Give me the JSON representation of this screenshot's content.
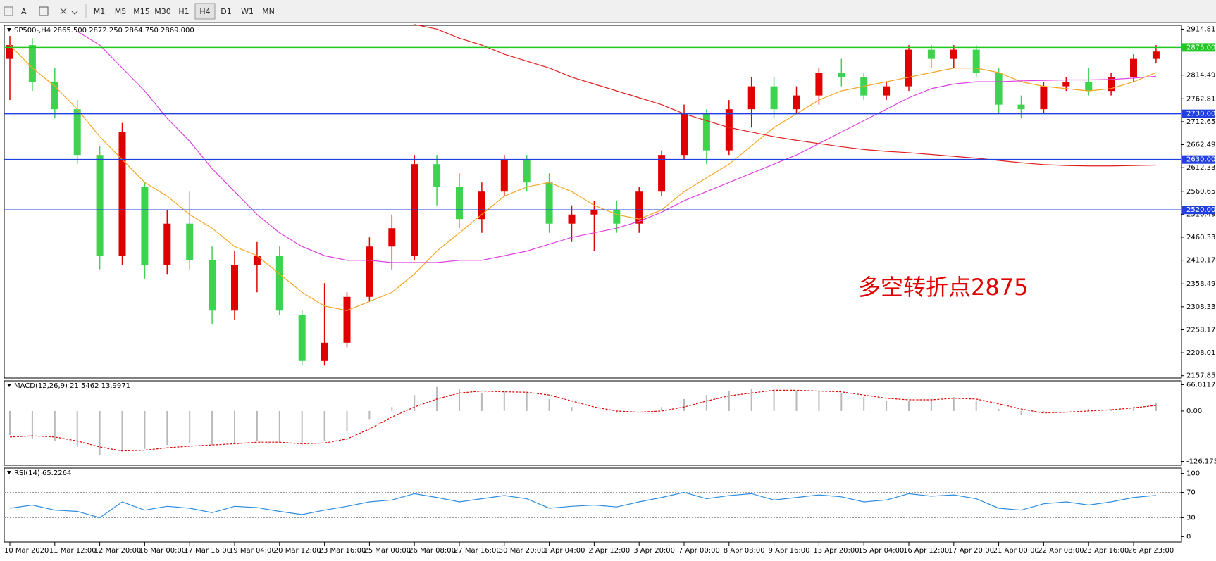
{
  "toolbar": {
    "buttons": [
      "A"
    ],
    "timeframes": [
      "M1",
      "M5",
      "M15",
      "M30",
      "H1",
      "H4",
      "D1",
      "W1",
      "MN"
    ],
    "active": 5
  },
  "chart_data": [
    {
      "type": "candlestick",
      "title": "SP500-,H4  2865.500 2872.250 2864.750 2869.000",
      "categories": [
        "10 Mar 2020",
        null,
        "11 Mar 12:00",
        null,
        "12 Mar 20:00",
        null,
        "16 Mar 00:00",
        null,
        "17 Mar 16:00",
        null,
        "19 Mar 04:00",
        null,
        "20 Mar 12:00",
        null,
        "23 Mar 16:00",
        null,
        "25 Mar 00:00",
        null,
        "26 Mar 08:00",
        null,
        "27 Mar 16:00",
        null,
        "30 Mar 20:00",
        null,
        "1 Apr 04:00",
        null,
        "2 Apr 12:00",
        null,
        "3 Apr 20:00",
        null,
        "7 Apr 00:00",
        null,
        "8 Apr 08:00",
        null,
        "9 Apr 16:00",
        null,
        "13 Apr 20:00",
        null,
        "15 Apr 04:00",
        null,
        "16 Apr 12:00",
        null,
        "17 Apr 20:00",
        null,
        "21 Apr 00:00",
        null,
        "22 Apr 08:00",
        null,
        "23 Apr 16:00",
        null,
        "26 Apr 23:00",
        null
      ],
      "open": [
        2850,
        2880,
        2800,
        2740,
        2640,
        2420,
        2570,
        2400,
        2490,
        2410,
        2300,
        2400,
        2420,
        2290,
        2190,
        2230,
        2330,
        2440,
        2420,
        2620,
        2570,
        2500,
        2560,
        2630,
        2580,
        2490,
        2510,
        2520,
        2490,
        2560,
        2640,
        2730,
        2650,
        2740,
        2790,
        2740,
        2770,
        2820,
        2810,
        2770,
        2790,
        2870,
        2850,
        2870,
        2820,
        2750,
        2740,
        2790,
        2800,
        2780,
        2810,
        2850
      ],
      "high": [
        2900,
        2895,
        2830,
        2760,
        2660,
        2710,
        2580,
        2520,
        2560,
        2440,
        2430,
        2450,
        2440,
        2300,
        2360,
        2340,
        2460,
        2510,
        2640,
        2640,
        2600,
        2580,
        2640,
        2640,
        2600,
        2530,
        2540,
        2540,
        2570,
        2650,
        2750,
        2740,
        2760,
        2810,
        2810,
        2790,
        2830,
        2850,
        2820,
        2800,
        2880,
        2880,
        2880,
        2880,
        2830,
        2770,
        2800,
        2810,
        2830,
        2820,
        2860,
        2880
      ],
      "low": [
        2760,
        2780,
        2720,
        2620,
        2390,
        2400,
        2370,
        2380,
        2390,
        2270,
        2280,
        2340,
        2290,
        2180,
        2180,
        2220,
        2320,
        2390,
        2410,
        2530,
        2480,
        2470,
        2550,
        2560,
        2470,
        2450,
        2430,
        2470,
        2470,
        2550,
        2630,
        2620,
        2640,
        2700,
        2720,
        2730,
        2750,
        2790,
        2760,
        2760,
        2780,
        2830,
        2830,
        2810,
        2730,
        2720,
        2730,
        2780,
        2770,
        2770,
        2800,
        2840
      ],
      "close": [
        2880,
        2800,
        2740,
        2640,
        2420,
        2690,
        2400,
        2490,
        2410,
        2300,
        2400,
        2420,
        2300,
        2190,
        2230,
        2330,
        2440,
        2480,
        2620,
        2570,
        2500,
        2560,
        2630,
        2580,
        2490,
        2510,
        2520,
        2490,
        2560,
        2640,
        2730,
        2650,
        2740,
        2790,
        2740,
        2770,
        2820,
        2810,
        2770,
        2790,
        2870,
        2850,
        2870,
        2820,
        2750,
        2740,
        2790,
        2800,
        2780,
        2810,
        2850,
        2866
      ],
      "up_color": "#e00000",
      "down_color": "#3fd24f",
      "series": [
        {
          "color": "#f5a623",
          "values": [
            2880,
            2830,
            2790,
            2740,
            2680,
            2630,
            2580,
            2550,
            2510,
            2480,
            2440,
            2420,
            2380,
            2340,
            2310,
            2300,
            2320,
            2340,
            2380,
            2430,
            2470,
            2510,
            2550,
            2570,
            2580,
            2560,
            2530,
            2510,
            2500,
            2520,
            2560,
            2590,
            2620,
            2660,
            2700,
            2730,
            2760,
            2780,
            2790,
            2800,
            2810,
            2820,
            2830,
            2830,
            2820,
            2800,
            2790,
            2785,
            2780,
            2785,
            2800,
            2820
          ]
        },
        {
          "color": "#e040e0",
          "values": [
            null,
            null,
            null,
            2910,
            2880,
            2830,
            2780,
            2720,
            2670,
            2610,
            2560,
            2510,
            2470,
            2440,
            2420,
            2410,
            2410,
            2405,
            2405,
            2405,
            2410,
            2410,
            2420,
            2430,
            2445,
            2460,
            2470,
            2480,
            2495,
            2515,
            2540,
            2560,
            2580,
            2600,
            2620,
            2640,
            2665,
            2690,
            2715,
            2740,
            2765,
            2785,
            2795,
            2800,
            2800,
            2802,
            2803,
            2804,
            2804,
            2805,
            2808,
            2812
          ]
        },
        {
          "color": "#e02020",
          "values": [
            null,
            null,
            null,
            null,
            null,
            null,
            null,
            null,
            null,
            null,
            null,
            null,
            null,
            null,
            null,
            null,
            null,
            null,
            2925,
            2915,
            2895,
            2880,
            2860,
            2845,
            2830,
            2810,
            2795,
            2780,
            2765,
            2750,
            2730,
            2715,
            2700,
            2690,
            2680,
            2672,
            2665,
            2658,
            2652,
            2648,
            2645,
            2641,
            2637,
            2633,
            2628,
            2623,
            2619,
            2617,
            2616,
            2616,
            2617,
            2618
          ]
        }
      ],
      "levels": [
        {
          "value": 2875,
          "label": "2875.000",
          "color": "#22c822"
        },
        {
          "value": 2730,
          "label": "2730.000",
          "color": "#2040e0"
        },
        {
          "value": 2630,
          "label": "2630.000",
          "color": "#2040e0"
        },
        {
          "value": 2520,
          "label": "2520.000",
          "color": "#2040e0"
        }
      ],
      "annotation": "多空转折点2875",
      "ylim": [
        2152.8,
        2923.2
      ],
      "yticks": [
        {
          "value": 2914.81,
          "label": "2914.810"
        },
        {
          "value": 2814.49,
          "label": "2814.490"
        },
        {
          "value": 2762.81,
          "label": "2762.810"
        },
        {
          "value": 2712.65,
          "label": "2712.650"
        },
        {
          "value": 2662.49,
          "label": "2662.490"
        },
        {
          "value": 2612.33,
          "label": "2612.330"
        },
        {
          "value": 2560.65,
          "label": "2560.650"
        },
        {
          "value": 2510.49,
          "label": "2510.490"
        },
        {
          "value": 2460.33,
          "label": "2460.330"
        },
        {
          "value": 2410.17,
          "label": "2410.170"
        },
        {
          "value": 2358.49,
          "label": "2358.490"
        },
        {
          "value": 2308.33,
          "label": "2308.330"
        },
        {
          "value": 2258.17,
          "label": "2258.170"
        },
        {
          "value": 2208.01,
          "label": "2208.010"
        },
        {
          "value": 2157.85,
          "label": "2157.850"
        }
      ]
    },
    {
      "type": "macd",
      "title": "MACD(12,26,9) 21.5462 13.9971",
      "histogram": {
        "color": "#b8b8b8",
        "values": [
          -60,
          -70,
          -75,
          -90,
          -110,
          -100,
          -95,
          -85,
          -80,
          -85,
          -80,
          -75,
          -80,
          -85,
          -75,
          -50,
          -20,
          10,
          40,
          60,
          55,
          45,
          50,
          45,
          30,
          10,
          0,
          -5,
          0,
          10,
          30,
          40,
          50,
          55,
          55,
          50,
          50,
          45,
          35,
          25,
          25,
          30,
          35,
          25,
          5,
          -10,
          -5,
          0,
          5,
          5,
          10,
          21.5462
        ]
      },
      "series": [
        {
          "color": "#e00000",
          "values": [
            -65,
            -62,
            -65,
            -75,
            -90,
            -100,
            -98,
            -92,
            -88,
            -85,
            -82,
            -78,
            -78,
            -82,
            -80,
            -70,
            -45,
            -15,
            10,
            30,
            45,
            50,
            48,
            47,
            40,
            25,
            10,
            0,
            -3,
            0,
            10,
            25,
            38,
            45,
            52,
            52,
            50,
            48,
            40,
            32,
            28,
            28,
            32,
            30,
            18,
            5,
            -5,
            -3,
            0,
            3,
            8,
            13.9971
          ]
        }
      ],
      "ylim": [
        -135.8,
        75.6
      ],
      "yticks": [
        66.0117,
        {
          "value": 0,
          "label": "0.00"
        },
        -126.173
      ]
    },
    {
      "type": "line",
      "title": "RSI(14) 65.2264",
      "series": [
        {
          "color": "#2d8ce0",
          "values": [
            45,
            50,
            42,
            40,
            30,
            55,
            42,
            48,
            45,
            38,
            48,
            46,
            40,
            35,
            42,
            48,
            55,
            58,
            68,
            62,
            55,
            60,
            65,
            60,
            45,
            48,
            50,
            47,
            55,
            62,
            70,
            60,
            65,
            68,
            58,
            62,
            66,
            63,
            55,
            58,
            68,
            64,
            66,
            60,
            45,
            42,
            52,
            55,
            50,
            55,
            62,
            65.2264
          ]
        }
      ],
      "levels": [
        70,
        30
      ],
      "ylim": [
        -8.5,
        108.5
      ],
      "yticks": [
        100,
        70,
        30,
        0
      ]
    }
  ]
}
